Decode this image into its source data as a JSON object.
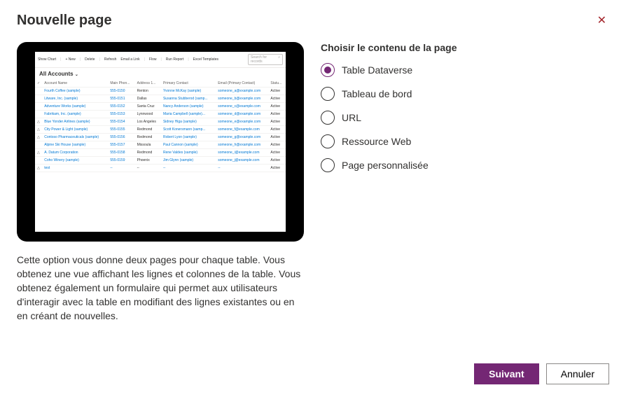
{
  "dialog": {
    "title": "Nouvelle page"
  },
  "description": "Cette option vous donne deux pages pour chaque table. Vous obtenez une vue affichant les lignes et colonnes de la table. Vous obtenez également un formulaire qui permet aux utilisateurs d'interagir avec la table en modifiant des lignes existantes ou en en créant de nouvelles.",
  "section_label": "Choisir le contenu de la page",
  "options": {
    "o0": "Table Dataverse",
    "o1": "Tableau de bord",
    "o2": "URL",
    "o3": "Ressource Web",
    "o4": "Page personnalisée"
  },
  "buttons": {
    "next": "Suivant",
    "cancel": "Annuler"
  },
  "preview": {
    "toolbar": {
      "chart": "Show Chart",
      "new": "New",
      "delete": "Delete",
      "refresh": "Refresh",
      "email": "Email a Link",
      "flow": "Flow",
      "report": "Run Report",
      "templates": "Excel Templates",
      "search": "Search for records"
    },
    "view_title": "All Accounts",
    "columns": {
      "c0": "Account Name",
      "c1": "Main Phon...",
      "c2": "Address 1...",
      "c3": "Primary Contact",
      "c4": "Email (Primary Contact)",
      "c5": "Statu..."
    },
    "rows": {
      "r0": {
        "name": "Fourth Coffee (sample)",
        "phone": "555-0150",
        "city": "Renton",
        "contact": "Yvonne McKay (sample)",
        "email": "someone_a@example.com",
        "status": "Active"
      },
      "r1": {
        "name": "Litware, Inc. (sample)",
        "phone": "555-0151",
        "city": "Dallas",
        "contact": "Susanna Stubberod (samp...",
        "email": "someone_b@example.com",
        "status": "Active"
      },
      "r2": {
        "name": "Adventure Works (sample)",
        "phone": "555-0152",
        "city": "Santa Cruz",
        "contact": "Nancy Anderson (sample)",
        "email": "someone_c@example.com",
        "status": "Active"
      },
      "r3": {
        "name": "Fabrikam, Inc. (sample)",
        "phone": "555-0153",
        "city": "Lynnwood",
        "contact": "Maria Campbell (sample)...",
        "email": "someone_d@example.com",
        "status": "Active"
      },
      "r4": {
        "name": "Blue Yonder Airlines (sample)",
        "phone": "555-0154",
        "city": "Los Angeles",
        "contact": "Sidney Higa (sample)",
        "email": "someone_e@example.com",
        "status": "Active"
      },
      "r5": {
        "name": "City Power & Light (sample)",
        "phone": "555-0155",
        "city": "Redmond",
        "contact": "Scott Konersmann (samp...",
        "email": "someone_f@example.com",
        "status": "Active"
      },
      "r6": {
        "name": "Contoso Pharmaceuticals (sample)",
        "phone": "555-0156",
        "city": "Redmond",
        "contact": "Robert Lyon (sample)",
        "email": "someone_g@example.com",
        "status": "Active"
      },
      "r7": {
        "name": "Alpine Ski House (sample)",
        "phone": "555-0157",
        "city": "Missoula",
        "contact": "Paul Cannon (sample)",
        "email": "someone_h@example.com",
        "status": "Active"
      },
      "r8": {
        "name": "A. Datum Corporation",
        "phone": "555-0158",
        "city": "Redmond",
        "contact": "Rene Valdes (sample)",
        "email": "someone_i@example.com",
        "status": "Active"
      },
      "r9": {
        "name": "Coho Winery (sample)",
        "phone": "555-0159",
        "city": "Phoenix",
        "contact": "Jim Glynn (sample)",
        "email": "someone_j@example.com",
        "status": "Active"
      },
      "r10": {
        "name": "test",
        "phone": "--",
        "city": "--",
        "contact": "--",
        "email": "--",
        "status": "Active"
      }
    }
  },
  "colors": {
    "accent": "#742774",
    "link": "#0078d4",
    "close": "#a4262c"
  }
}
